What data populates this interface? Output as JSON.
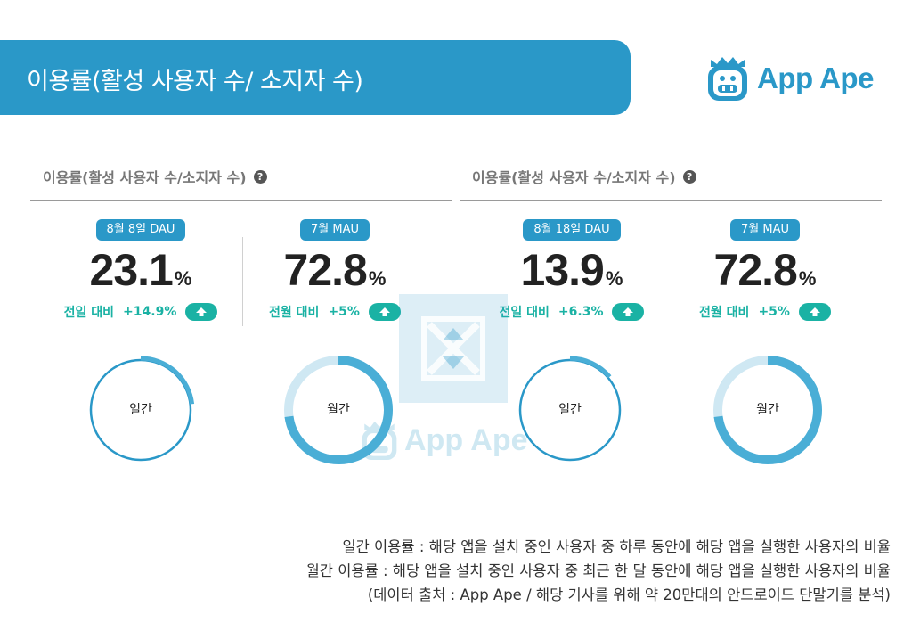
{
  "header": {
    "title": "이용률(활성 사용자 수/ 소지자 수)"
  },
  "brand": {
    "name": "App Ape",
    "color": "#2a98c8",
    "icon": "app-ape-monkey-icon"
  },
  "sections": [
    {
      "title": "이용률(활성 사용자 수/소지자 수)",
      "help_icon": "question-circle-icon",
      "metrics": [
        {
          "badge": "8월 8일 DAU",
          "value": "23.1",
          "unit": "%",
          "compare_label": "전일 대비",
          "change": "+14.9%",
          "trend_icon": "arrow-up-icon",
          "donut_label": "일간",
          "donut_fill": 0.231
        },
        {
          "badge": "7월 MAU",
          "value": "72.8",
          "unit": "%",
          "compare_label": "전월 대비",
          "change": "+5%",
          "trend_icon": "arrow-up-icon",
          "donut_label": "월간",
          "donut_fill": 0.728
        }
      ]
    },
    {
      "title": "이용률(활성 사용자 수/소지자 수)",
      "help_icon": "question-circle-icon",
      "metrics": [
        {
          "badge": "8월 18일 DAU",
          "value": "13.9",
          "unit": "%",
          "compare_label": "전일 대비",
          "change": "+6.3%",
          "trend_icon": "arrow-up-icon",
          "donut_label": "일간",
          "donut_fill": 0.139
        },
        {
          "badge": "7월 MAU",
          "value": "72.8",
          "unit": "%",
          "compare_label": "전월 대비",
          "change": "+5%",
          "trend_icon": "arrow-up-icon",
          "donut_label": "월간",
          "donut_fill": 0.728
        }
      ]
    }
  ],
  "watermark": {
    "text": "App Ape"
  },
  "footnotes": [
    "일간 이용률 : 해당 앱을 설치 중인 사용자 중 하루 동안에 해당 앱을 실행한 사용자의 비율",
    "월간 이용률 : 해당 앱을 설치 중인 사용자 중 최근 한 달 동안에 해당 앱을 실행한 사용자의 비율",
    "(데이터 출처 : App Ape / 해당 기사를 위해 약 20만대의 안드로이드 단말기를 분석)"
  ],
  "colors": {
    "accent": "#2a98c8",
    "positive": "#1ab2a4",
    "ring_light": "#cfe8f3",
    "ring_dark": "#4aaed6"
  }
}
